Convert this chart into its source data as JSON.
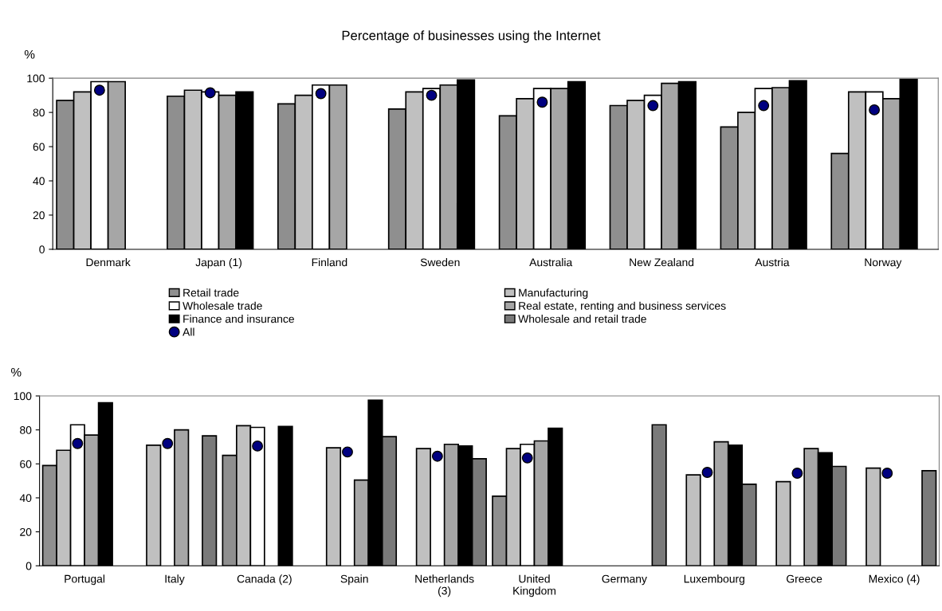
{
  "chart_data": [
    {
      "type": "bar",
      "title": "Percentage of businesses using the Internet",
      "ylabel": "%",
      "categories": [
        "Denmark",
        "Japan (1)",
        "Finland",
        "Sweden",
        "Australia",
        "New Zealand",
        "Austria",
        "Norway"
      ],
      "ylim": [
        0,
        100
      ],
      "yticks": [
        0,
        20,
        40,
        60,
        80,
        100
      ],
      "grid": false,
      "legend": "bottom",
      "series": [
        {
          "name": "Retail trade",
          "color": "#8f8f8f",
          "values": [
            87,
            89.5,
            85,
            82,
            78,
            84,
            71.5,
            56
          ]
        },
        {
          "name": "Manufacturing",
          "color": "#c0c0c0",
          "values": [
            92,
            93,
            90,
            92,
            88,
            87,
            80,
            92
          ]
        },
        {
          "name": "Wholesale trade",
          "color": "#ffffff",
          "values": [
            98,
            92,
            96,
            94,
            94,
            90,
            94,
            92
          ]
        },
        {
          "name": "Real estate, renting and business services",
          "color": "#a6a6a6",
          "values": [
            98,
            90,
            96,
            96,
            94,
            97,
            94.5,
            88
          ]
        },
        {
          "name": "Finance and insurance",
          "color": "#000000",
          "values": [
            null,
            92,
            null,
            99,
            98,
            98,
            98.5,
            99.5
          ]
        },
        {
          "name": "Wholesale and retail trade",
          "color": "#7a7a7a",
          "values": [
            null,
            null,
            null,
            null,
            null,
            null,
            null,
            null
          ]
        },
        {
          "name": "All",
          "type": "scatter",
          "marker": "circle",
          "color": "#000080",
          "values": [
            93,
            91.5,
            91,
            90,
            86,
            84,
            84,
            81.5
          ]
        }
      ]
    },
    {
      "type": "bar",
      "ylabel": "%",
      "categories": [
        "Portugal",
        "Italy",
        "Canada (2)",
        "Spain",
        "Netherlands\n(3)",
        "United\nKingdom",
        "Germany",
        "Luxembourg",
        "Greece",
        "Mexico (4)"
      ],
      "ylim": [
        0,
        100
      ],
      "yticks": [
        0,
        20,
        40,
        60,
        80,
        100
      ],
      "grid": false,
      "series": [
        {
          "color": "#8f8f8f",
          "values": [
            59,
            null,
            65,
            null,
            null,
            41,
            null,
            null,
            null,
            null
          ]
        },
        {
          "color": "#c0c0c0",
          "values": [
            68,
            71,
            82.5,
            69.5,
            69,
            69,
            null,
            53.5,
            49.5,
            57.5
          ]
        },
        {
          "color": "#ffffff",
          "values": [
            83,
            null,
            81.5,
            null,
            null,
            71.5,
            null,
            null,
            null,
            null
          ]
        },
        {
          "color": "#a6a6a6",
          "values": [
            77,
            80,
            null,
            50.5,
            71.5,
            73.5,
            null,
            73,
            69,
            null
          ]
        },
        {
          "color": "#000000",
          "values": [
            96,
            null,
            82,
            97.5,
            70.5,
            81,
            null,
            71,
            66.5,
            null
          ]
        },
        {
          "color": "#7a7a7a",
          "values": [
            null,
            76.5,
            null,
            76,
            63,
            null,
            83,
            48,
            58.5,
            56
          ]
        },
        {
          "type": "scatter",
          "marker": "circle",
          "color": "#000080",
          "values": [
            72,
            72,
            70.5,
            67,
            64.5,
            63.5,
            null,
            55,
            54.5,
            54.5
          ]
        }
      ]
    }
  ]
}
